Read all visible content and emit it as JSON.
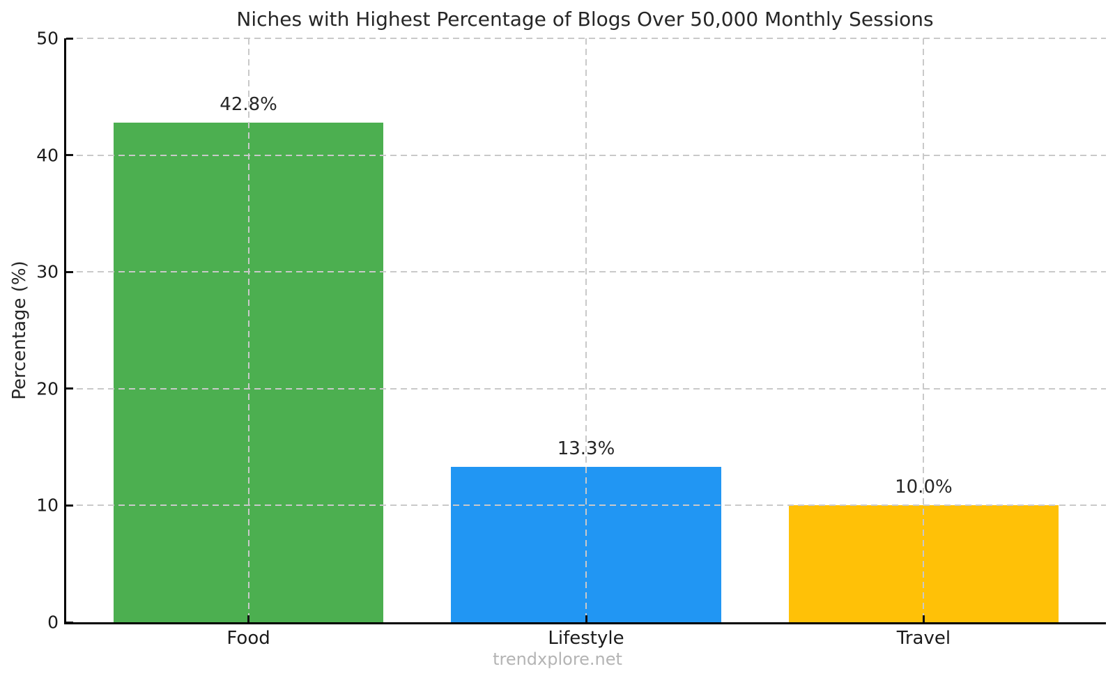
{
  "chart_data": {
    "type": "bar",
    "title": "Niches with Highest Percentage of Blogs Over 50,000 Monthly Sessions",
    "categories": [
      "Food",
      "Lifestyle",
      "Travel"
    ],
    "values": [
      42.8,
      13.3,
      10.0
    ],
    "value_labels": [
      "42.8%",
      "13.3%",
      "10.0%"
    ],
    "bar_colors": [
      "#4caf50",
      "#2196f3",
      "#ffc107"
    ],
    "xlabel": "",
    "ylabel": "Percentage (%)",
    "ylim": [
      0,
      50
    ],
    "yticks": [
      0,
      10,
      20,
      30,
      40,
      50
    ],
    "grid": {
      "horizontal": true,
      "vertical": true,
      "style": "dashed",
      "color": "#c9c9c9",
      "above_bars": true
    },
    "legend": "none",
    "watermark": "trendxplore.net"
  },
  "colors": {
    "background": "#ffffff",
    "axis_spine": "#000000",
    "tick_text": "#1a1a1a",
    "title_text": "#262626",
    "grid": "#c9c9c9",
    "watermark": "#b4b4b4"
  }
}
